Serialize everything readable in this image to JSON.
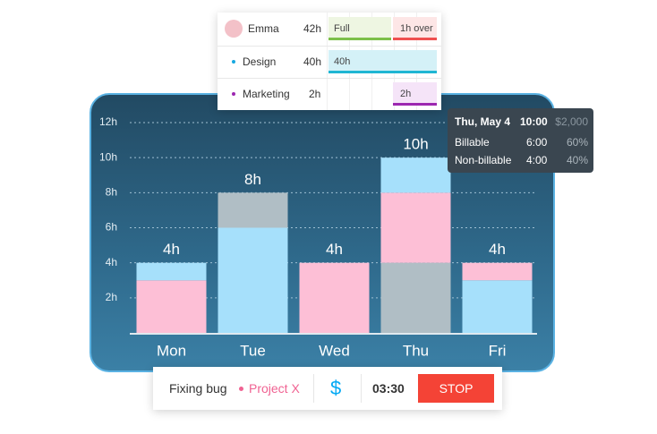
{
  "schedule": {
    "rows": [
      {
        "name": "Emma",
        "hours": "42h",
        "bars": [
          "Full",
          "1h over"
        ]
      },
      {
        "name": "Design",
        "hours": "40h",
        "bars": [
          "40h"
        ]
      },
      {
        "name": "Marketing",
        "hours": "2h",
        "bars": [
          "2h"
        ]
      }
    ]
  },
  "chart_data": {
    "type": "stacked-bar",
    "categories": [
      "Mon",
      "Tue",
      "Wed",
      "Thu",
      "Fri"
    ],
    "bars": [
      {
        "segments": [
          {
            "value": 3,
            "color": "#fdbfd6"
          },
          {
            "value": 1,
            "color": "#a6e0fb"
          }
        ]
      },
      {
        "segments": [
          {
            "value": 6,
            "color": "#a6e0fb"
          },
          {
            "value": 2,
            "color": "#b0bec5"
          }
        ]
      },
      {
        "segments": [
          {
            "value": 4,
            "color": "#fdbfd6"
          }
        ]
      },
      {
        "segments": [
          {
            "value": 4,
            "color": "#b0bec5"
          },
          {
            "value": 4,
            "color": "#fdbfd6"
          },
          {
            "value": 2,
            "color": "#a6e0fb"
          }
        ]
      },
      {
        "segments": [
          {
            "value": 3,
            "color": "#a6e0fb"
          },
          {
            "value": 1,
            "color": "#fdbfd6"
          }
        ]
      }
    ],
    "value_labels": [
      "4h",
      "8h",
      "4h",
      "10h",
      "4h"
    ],
    "ylim": [
      0,
      12
    ],
    "yticks": [
      {
        "value": 2,
        "label": "2h"
      },
      {
        "value": 4,
        "label": "4h"
      },
      {
        "value": 6,
        "label": "6h"
      },
      {
        "value": 8,
        "label": "8h"
      },
      {
        "value": 10,
        "label": "10h"
      },
      {
        "value": 12,
        "label": "12h"
      }
    ],
    "grid": true
  },
  "tooltip": {
    "date": "Thu, May 4",
    "time": "10:00",
    "amount": "$2,000",
    "rows": [
      {
        "label": "Billable",
        "time": "6:00",
        "percent": "60%"
      },
      {
        "label": "Non-billable",
        "time": "4:00",
        "percent": "40%"
      }
    ]
  },
  "timer": {
    "task": "Fixing bug",
    "project": "Project X",
    "billing": "$",
    "elapsed": "03:30",
    "button": "STOP"
  }
}
